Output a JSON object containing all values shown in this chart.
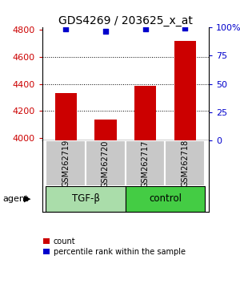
{
  "title": "GDS4269 / 203625_x_at",
  "samples": [
    "GSM262719",
    "GSM262720",
    "GSM262717",
    "GSM262718"
  ],
  "counts": [
    4330,
    4135,
    4385,
    4720
  ],
  "percentile_ranks": [
    98,
    96,
    98,
    99
  ],
  "ylim_left": [
    3980,
    4820
  ],
  "ylim_right": [
    0,
    100
  ],
  "yticks_left": [
    4000,
    4200,
    4400,
    4600,
    4800
  ],
  "yticks_right": [
    0,
    25,
    50,
    75,
    100
  ],
  "ytick_labels_right": [
    "0",
    "25",
    "50",
    "75",
    "100%"
  ],
  "grid_values": [
    4200,
    4400,
    4600
  ],
  "bar_color": "#cc0000",
  "dot_color": "#0000cc",
  "groups": [
    {
      "label": "TGF-β",
      "color": "#aaddaa",
      "samples": [
        0,
        1
      ]
    },
    {
      "label": "control",
      "color": "#44cc44",
      "samples": [
        2,
        3
      ]
    }
  ],
  "agent_label": "agent",
  "legend_count_label": "count",
  "legend_pct_label": "percentile rank within the sample",
  "sample_box_color": "#c8c8c8",
  "title_fontsize": 10,
  "tick_fontsize": 8,
  "left_tick_color": "#cc0000",
  "right_tick_color": "#0000cc"
}
